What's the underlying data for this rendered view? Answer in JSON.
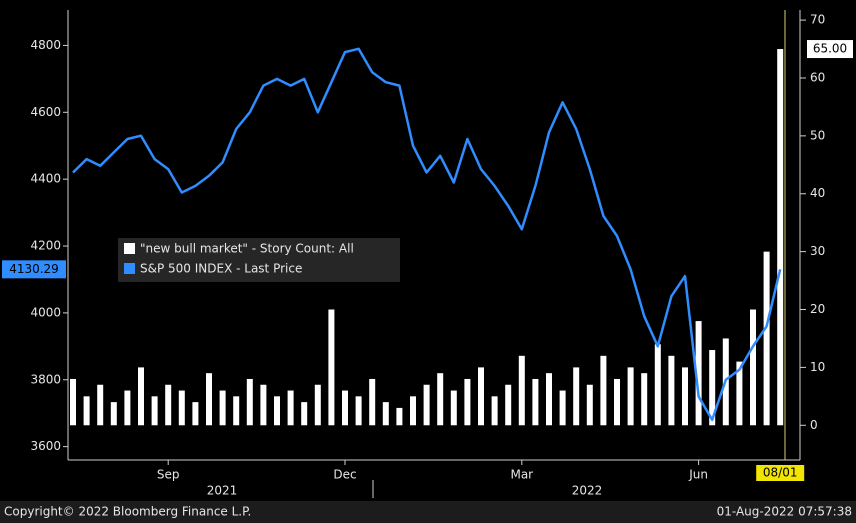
{
  "chart_data": {
    "type": "bar-line",
    "categories": [
      null,
      null,
      null,
      null,
      null,
      null,
      null,
      "Sep",
      null,
      null,
      null,
      null,
      null,
      null,
      null,
      null,
      null,
      null,
      null,
      null,
      "Dec",
      null,
      null,
      null,
      null,
      null,
      null,
      null,
      null,
      null,
      null,
      null,
      null,
      "Mar",
      null,
      null,
      null,
      null,
      null,
      null,
      null,
      null,
      null,
      null,
      null,
      null,
      "Jun",
      null,
      null,
      null,
      null,
      null,
      null
    ],
    "years": [
      "2021",
      "2022"
    ],
    "end_date": "08/01",
    "series": [
      {
        "name": "\"new bull market\" - Story Count: All",
        "type": "bar",
        "axis": "y2",
        "color": "#ffffff",
        "values": [
          8,
          5,
          7,
          4,
          6,
          10,
          5,
          7,
          6,
          4,
          9,
          6,
          5,
          8,
          7,
          5,
          6,
          4,
          7,
          20,
          6,
          5,
          8,
          4,
          3,
          5,
          7,
          9,
          6,
          8,
          10,
          5,
          7,
          12,
          8,
          9,
          6,
          10,
          7,
          12,
          8,
          10,
          9,
          14,
          12,
          10,
          18,
          13,
          15,
          11,
          20,
          30,
          65
        ],
        "last_value_label": "65.00"
      },
      {
        "name": "S&P 500 INDEX - Last Price",
        "type": "line",
        "axis": "y",
        "color": "#2f8dff",
        "values": [
          4420,
          4460,
          4440,
          4480,
          4520,
          4530,
          4460,
          4430,
          4360,
          4380,
          4410,
          4450,
          4550,
          4600,
          4680,
          4700,
          4680,
          4700,
          4600,
          4690,
          4780,
          4790,
          4720,
          4690,
          4680,
          4500,
          4420,
          4470,
          4390,
          4520,
          4430,
          4380,
          4320,
          4250,
          4380,
          4540,
          4630,
          4550,
          4430,
          4290,
          4230,
          4130,
          3990,
          3900,
          4050,
          4110,
          3750,
          3680,
          3800,
          3830,
          3900,
          3960,
          4130.29
        ],
        "last_value_label": "4130.29"
      }
    ],
    "ylim": [
      3560,
      4900
    ],
    "yticks": [
      3600,
      3800,
      4000,
      4200,
      4400,
      4600,
      4800
    ],
    "y2lim": [
      -6,
      71.4
    ],
    "y2ticks": [
      0,
      10,
      20,
      30,
      40,
      50,
      60,
      70
    ],
    "footer_left": "Copyright© 2022 Bloomberg Finance L.P.",
    "footer_right": "01-Aug-2022 07:57:38"
  }
}
